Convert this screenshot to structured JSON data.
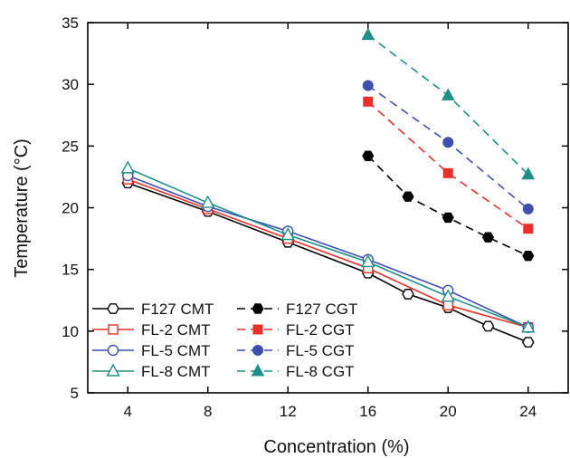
{
  "chart_data": {
    "type": "line",
    "xlabel": "Concentration (%)",
    "ylabel": "Temperature (°C)",
    "xlim": [
      2,
      26
    ],
    "ylim": [
      5,
      35
    ],
    "xticks": [
      4,
      8,
      12,
      16,
      20,
      24
    ],
    "yticks": [
      5,
      10,
      15,
      20,
      25,
      30,
      35
    ],
    "legend_position": "bottom-left",
    "series": [
      {
        "name": "F127 CMT",
        "color": "#000000",
        "marker": "hexagon",
        "filled": false,
        "dashed": false,
        "x": [
          4,
          8,
          12,
          16,
          18,
          20,
          22,
          24
        ],
        "y": [
          22.0,
          19.7,
          17.2,
          14.7,
          13.0,
          11.9,
          10.4,
          9.1
        ]
      },
      {
        "name": "FL-2 CMT",
        "color": "#e8302a",
        "marker": "square",
        "filled": false,
        "dashed": false,
        "x": [
          4,
          8,
          12,
          16,
          20,
          24
        ],
        "y": [
          22.3,
          19.9,
          17.5,
          15.1,
          12.1,
          10.3
        ]
      },
      {
        "name": "FL-5 CMT",
        "color": "#3f4fb0",
        "marker": "circle",
        "filled": false,
        "dashed": false,
        "x": [
          4,
          8,
          12,
          16,
          20,
          24
        ],
        "y": [
          22.6,
          20.1,
          18.1,
          15.8,
          13.3,
          10.3
        ]
      },
      {
        "name": "FL-8 CMT",
        "color": "#1f8f89",
        "marker": "triangle",
        "filled": false,
        "dashed": false,
        "x": [
          4,
          8,
          12,
          16,
          20,
          24
        ],
        "y": [
          23.2,
          20.4,
          17.8,
          15.6,
          12.8,
          10.3
        ]
      },
      {
        "name": "F127 CGT",
        "color": "#000000",
        "marker": "hexagon",
        "filled": true,
        "dashed": true,
        "x": [
          16,
          18,
          20,
          22,
          24
        ],
        "y": [
          24.2,
          20.9,
          19.2,
          17.6,
          16.1
        ]
      },
      {
        "name": "FL-2 CGT",
        "color": "#e8302a",
        "marker": "square",
        "filled": true,
        "dashed": true,
        "x": [
          16,
          20,
          24
        ],
        "y": [
          28.6,
          22.8,
          18.3
        ]
      },
      {
        "name": "FL-5 CGT",
        "color": "#3f4fb0",
        "marker": "circle",
        "filled": true,
        "dashed": true,
        "x": [
          16,
          20,
          24
        ],
        "y": [
          29.9,
          25.3,
          19.9
        ]
      },
      {
        "name": "FL-8 CGT",
        "color": "#1f8f89",
        "marker": "triangle",
        "filled": true,
        "dashed": true,
        "x": [
          16,
          20,
          24
        ],
        "y": [
          34.0,
          29.1,
          22.7
        ]
      }
    ]
  }
}
